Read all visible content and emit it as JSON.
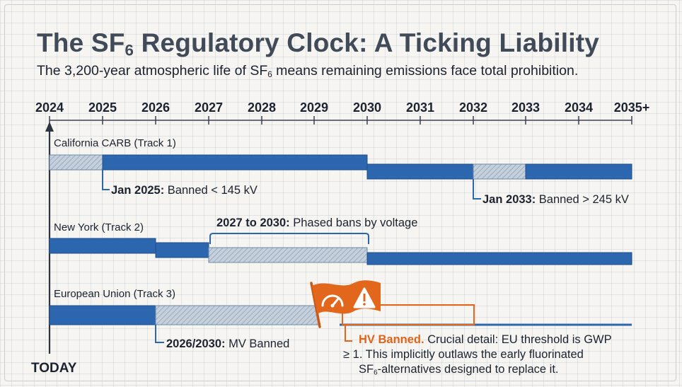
{
  "title": {
    "prefix": "The SF",
    "sub": "6",
    "rest": " Regulatory Clock: A Ticking Liability"
  },
  "subtitle": {
    "prefix": "The 3,200-year atmospheric life of SF",
    "sub": "6",
    "rest": " means remaining emissions face total prohibition."
  },
  "years": [
    "2024",
    "2025",
    "2026",
    "2027",
    "2028",
    "2029",
    "2030",
    "2031",
    "2032",
    "2033",
    "2034",
    "2035+"
  ],
  "today_label": "TODAY",
  "colors": {
    "bar": "#2c66ae",
    "bar_edge": "#1f4f8c",
    "hatch": "#b7c6d6",
    "accent": "#e2671c",
    "axis": "#3a4150"
  },
  "tracks": [
    {
      "label": "California CARB (Track 1)",
      "notes": [
        {
          "bold": "Jan 2025:",
          "text": " Banned < 145 kV"
        },
        {
          "bold": "Jan 2033:",
          "text": " Banned > 245 kV"
        }
      ]
    },
    {
      "label": "New York (Track 2)",
      "notes": [
        {
          "bold": "2027 to 2030:",
          "text": " Phased bans by voltage"
        }
      ]
    },
    {
      "label": "European Union (Track 3)",
      "notes": [
        {
          "bold": "2026/2030:",
          "text": " MV Banned"
        }
      ],
      "callout": {
        "headline": "HV Banned.",
        "line1": " Crucial detail: EU threshold is GWP",
        "line2": "≥ 1. This implicitly outlaws the early fluorinated",
        "line3_prefix": "SF",
        "line3_sub": "6",
        "line3_rest": "-alternatives designed to replace it.",
        "icons": [
          "gauge-icon",
          "warning-icon"
        ]
      }
    }
  ]
}
